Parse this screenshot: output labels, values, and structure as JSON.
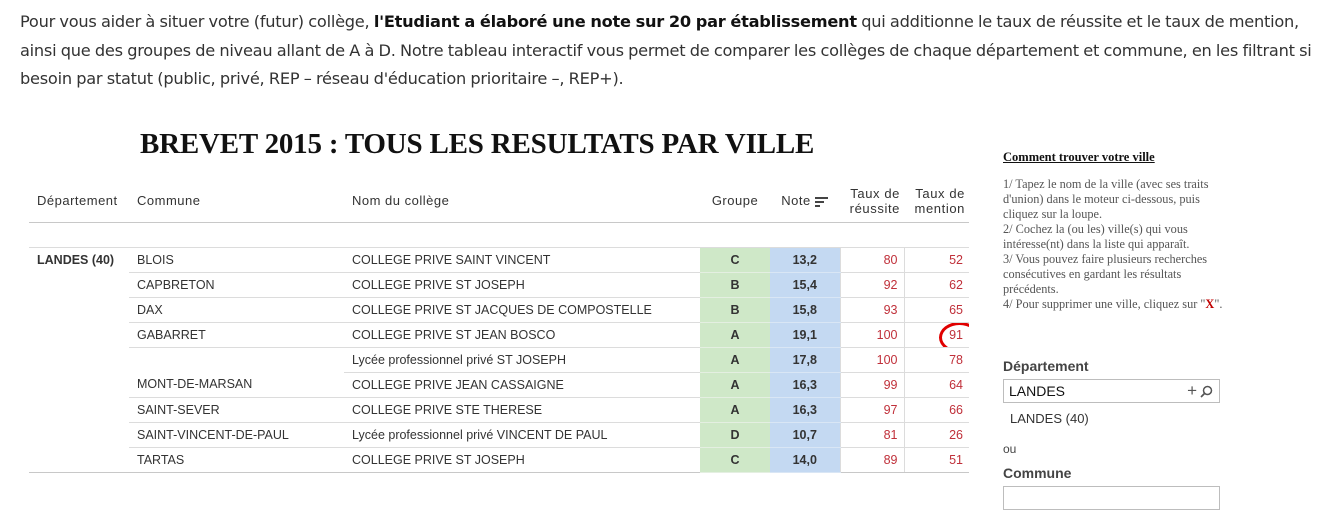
{
  "intro": {
    "part1": "Pour vous aider à situer votre (futur) collège, ",
    "bold": "l'Etudiant a élaboré une note sur 20 par établissement",
    "part2": " qui additionne le taux de réussite et le taux de mention, ainsi que des groupes de niveau allant de A à D. Notre tableau interactif vous permet de comparer les collèges de chaque département et commune, en les filtrant si besoin par statut (public, privé, REP – réseau d'éducation prioritaire –, REP+)."
  },
  "table": {
    "title": "BREVET 2015 : TOUS LES RESULTATS PAR VILLE",
    "headers": {
      "departement": "Département",
      "commune": "Commune",
      "college": "Nom du collège",
      "groupe": "Groupe",
      "note": "Note",
      "reussite_line1": "Taux de",
      "reussite_line2": "réussite",
      "mention_line1": "Taux de",
      "mention_line2": "mention"
    },
    "rows": [
      {
        "departement": "LANDES (40)",
        "commune": "BLOIS",
        "college": "COLLEGE PRIVE SAINT VINCENT",
        "groupe": "C",
        "note": "13,2",
        "reussite": "80",
        "mention": "52"
      },
      {
        "departement": "",
        "commune": "CAPBRETON",
        "college": "COLLEGE PRIVE ST JOSEPH",
        "groupe": "B",
        "note": "15,4",
        "reussite": "92",
        "mention": "62"
      },
      {
        "departement": "",
        "commune": "DAX",
        "college": "COLLEGE PRIVE ST JACQUES DE COMPOSTELLE",
        "groupe": "B",
        "note": "15,8",
        "reussite": "93",
        "mention": "65"
      },
      {
        "departement": "",
        "commune": "GABARRET",
        "college": "COLLEGE PRIVE ST JEAN BOSCO",
        "groupe": "A",
        "note": "19,1",
        "reussite": "100",
        "mention": "91"
      },
      {
        "departement": "",
        "commune": "",
        "college": "Lycée professionnel privé ST JOSEPH",
        "groupe": "A",
        "note": "17,8",
        "reussite": "100",
        "mention": "78"
      },
      {
        "departement": "",
        "commune": "MONT-DE-MARSAN",
        "college": "COLLEGE PRIVE JEAN CASSAIGNE",
        "groupe": "A",
        "note": "16,3",
        "reussite": "99",
        "mention": "64"
      },
      {
        "departement": "",
        "commune": "SAINT-SEVER",
        "college": "COLLEGE PRIVE STE THERESE",
        "groupe": "A",
        "note": "16,3",
        "reussite": "97",
        "mention": "66"
      },
      {
        "departement": "",
        "commune": "SAINT-VINCENT-DE-PAUL",
        "college": "Lycée professionnel privé VINCENT DE PAUL",
        "groupe": "D",
        "note": "10,7",
        "reussite": "81",
        "mention": "26"
      },
      {
        "departement": "",
        "commune": "TARTAS",
        "college": "COLLEGE PRIVE ST JOSEPH",
        "groupe": "C",
        "note": "14,0",
        "reussite": "89",
        "mention": "51"
      }
    ]
  },
  "colors": {
    "groupe_bg": "#cfe8c8",
    "note_bg": "#c4d9f2",
    "taux_text": "#c0303a",
    "highlight_circle": "#e00000"
  },
  "help": {
    "title": "Comment trouver votre ville",
    "step1": "1/ Tapez le nom de la ville (avec ses traits d'union) dans le moteur ci-dessous, puis cliquez sur la loupe.",
    "step2": "2/ Cochez la (ou les) ville(s) qui vous intéresse(nt) dans la liste qui apparaît.",
    "step3": "3/ Vous pouvez faire plusieurs recherches consécutives en gardant les résultats précédents.",
    "step4_prefix": "4/ Pour supprimer une ville, cliquez sur \"",
    "step4_x": "X",
    "step4_suffix": "\"."
  },
  "filters": {
    "departement_label": "Département",
    "departement_value": "LANDES",
    "departement_selected": "LANDES (40)",
    "or_label": "ou",
    "commune_label": "Commune",
    "commune_value": "",
    "icons": [
      "plus-icon",
      "magnifier-icon",
      "sort-icon"
    ]
  }
}
